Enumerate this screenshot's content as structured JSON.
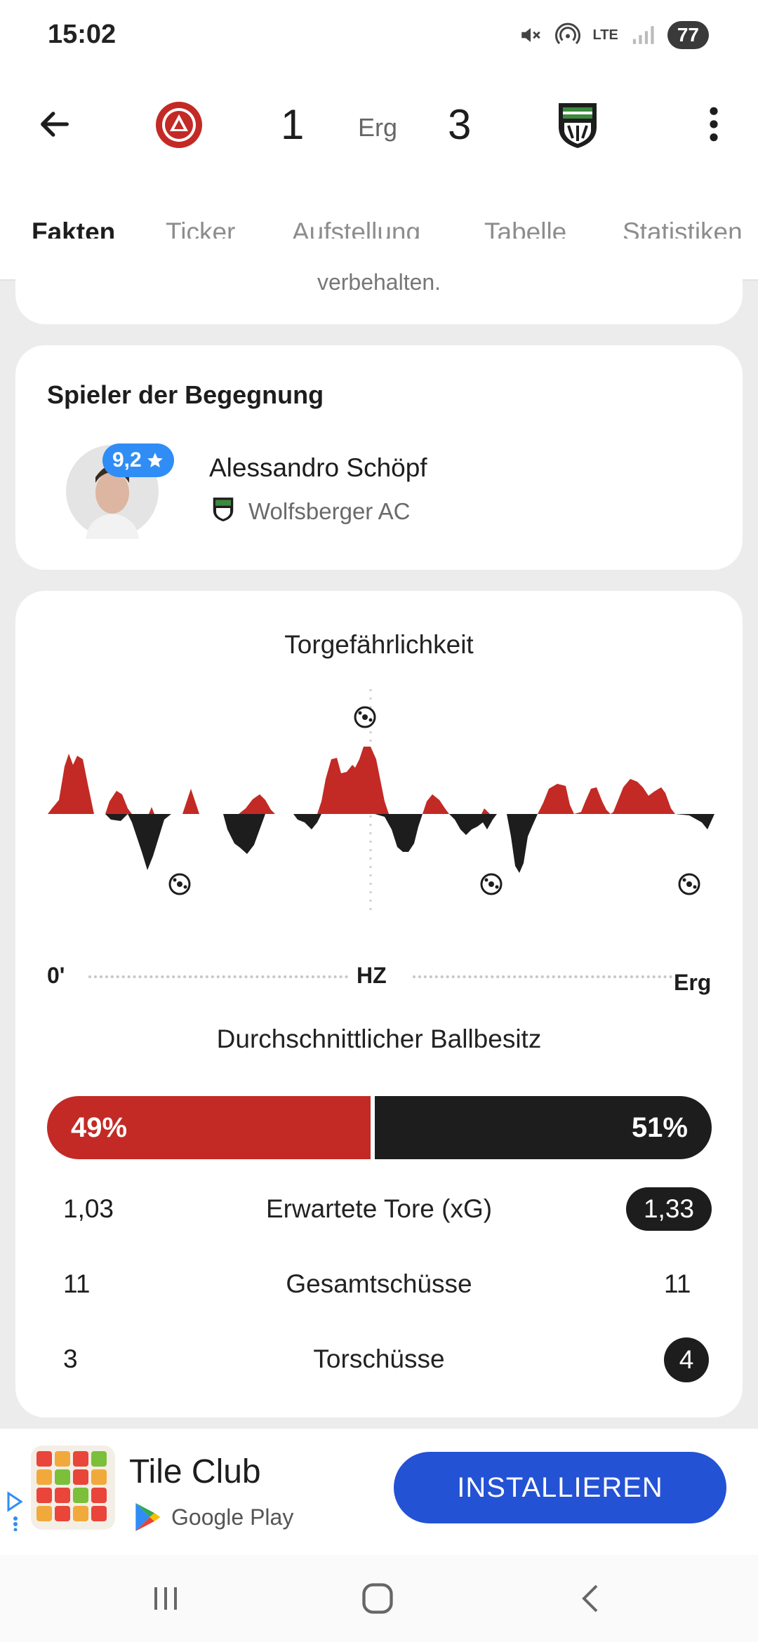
{
  "status_bar": {
    "time": "15:02",
    "network": "LTE",
    "battery": "77"
  },
  "header": {
    "home_score": "1",
    "status": "Erg",
    "away_score": "3"
  },
  "tabs": [
    {
      "label": "Fakten",
      "active": true
    },
    {
      "label": "Ticker"
    },
    {
      "label": "Aufstellung"
    },
    {
      "label": "Tabelle"
    },
    {
      "label": "Statistiken"
    }
  ],
  "prev_card": {
    "partial_text": "verbehalten."
  },
  "player_card": {
    "title": "Spieler der Begegnung",
    "rating": "9,2",
    "player_name": "Alessandro Schöpf",
    "team_name": "Wolfsberger AC"
  },
  "momentum": {
    "title": "Torgefährlichkeit",
    "axis_start": "0'",
    "axis_mid": "HZ",
    "axis_end": "Erg",
    "home_color": "#c32a25",
    "away_color": "#1d1d1d"
  },
  "possession": {
    "title": "Durchschnittlicher Ballbesitz",
    "home_percent": 49,
    "away_percent": 51,
    "home_label": "49%",
    "away_label": "51%"
  },
  "stats": [
    {
      "label": "Erwartete Tore (xG)",
      "home": "1,03",
      "away": "1,33",
      "highlight": "away"
    },
    {
      "label": "Gesamtschüsse",
      "home": "11",
      "away": "11",
      "highlight": "none"
    },
    {
      "label": "Torschüsse",
      "home": "3",
      "away": "4",
      "highlight": "away"
    }
  ],
  "ad": {
    "app_name": "Tile Club",
    "store_label": "Google Play",
    "cta_label": "INSTALLIEREN",
    "cta_color": "#2452d4"
  }
}
